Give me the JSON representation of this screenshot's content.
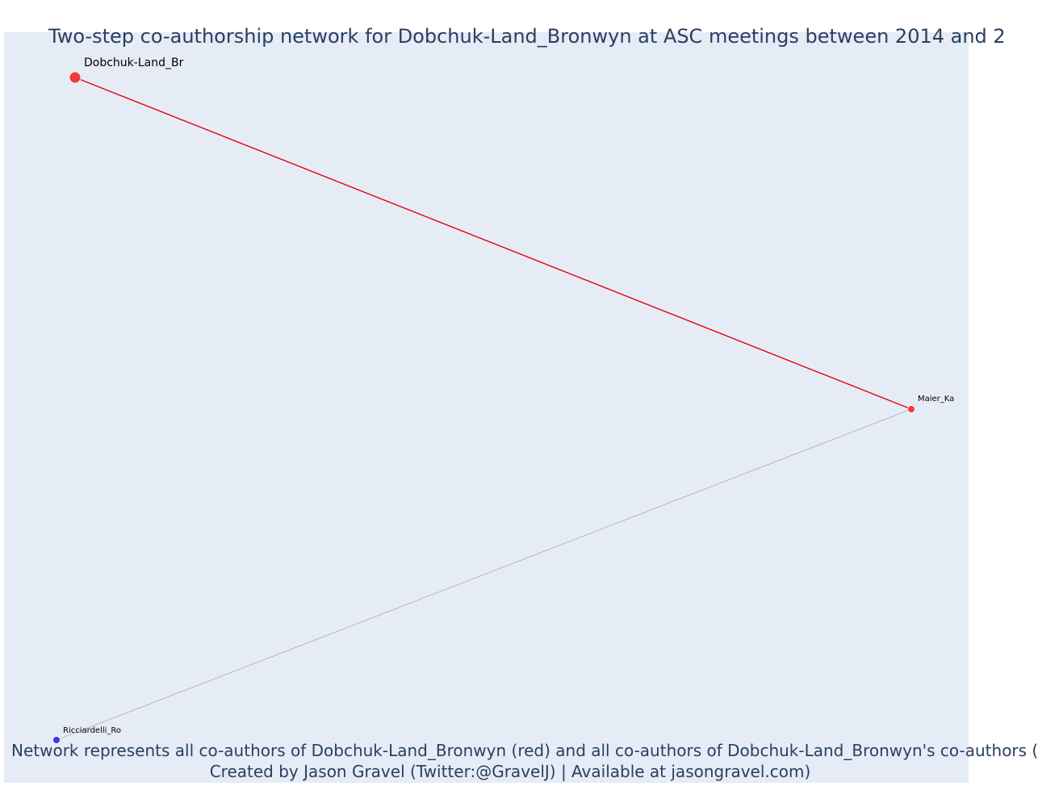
{
  "title": "Two-step co-authorship network for Dobchuk-Land_Bronwyn at ASC meetings between 2014 and 2",
  "caption_line1": "Network represents all co-authors of Dobchuk-Land_Bronwyn (red) and all co-authors of Dobchuk-Land_Bronwyn's co-authors (",
  "caption_line2": "Created by Jason Gravel (Twitter:@GravelJ) | Available at jasongravel.com)",
  "colors": {
    "background": "#e5ecf6",
    "ego_node": "#ef3b3b",
    "alter_node": "#ef3b3b",
    "two_step_node": "#3a3aee",
    "direct_edge": "#e8000b",
    "indirect_edge": "#b0b0c0",
    "text": "#2a3f5f"
  },
  "nodes": [
    {
      "id": "dobchuk",
      "label": "Dobchuk-Land_Br",
      "role": "ego",
      "color": "#ef3b3b"
    },
    {
      "id": "maier",
      "label": "Maier_Ka",
      "role": "co-author",
      "color": "#ef3b3b"
    },
    {
      "id": "ricciardelli",
      "label": "Ricciardelli_Ro",
      "role": "co-author-of-co-author",
      "color": "#3a3aee"
    }
  ],
  "edges": [
    {
      "from": "dobchuk",
      "to": "maier",
      "color": "#e8000b"
    },
    {
      "from": "maier",
      "to": "ricciardelli",
      "color": "#b0b0c0"
    }
  ]
}
